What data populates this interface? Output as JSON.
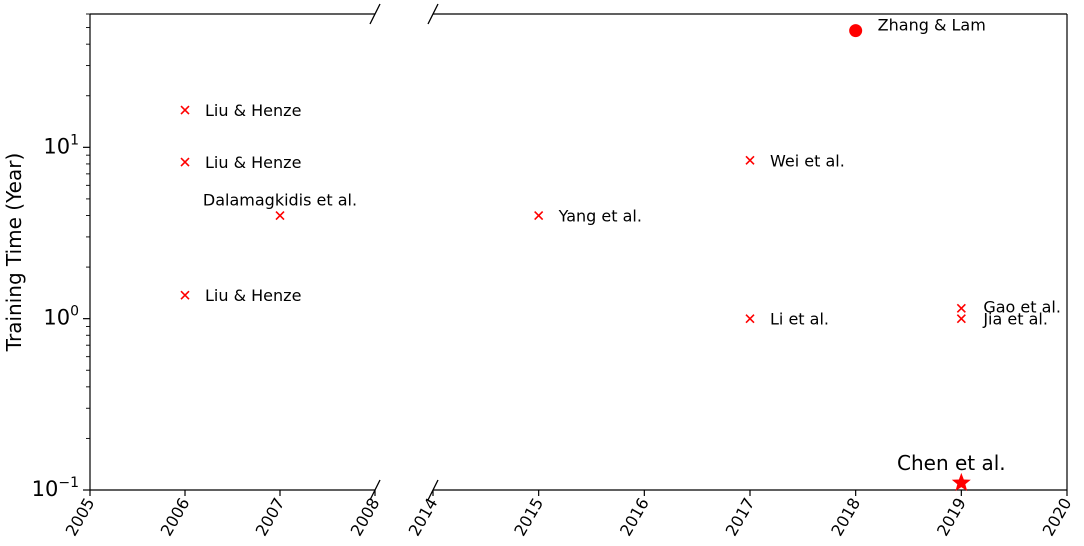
{
  "chart_data": {
    "type": "scatter",
    "title": "",
    "xlabel": "",
    "ylabel": "Training Time (Year)",
    "yscale": "log",
    "ylim": [
      0.1,
      60
    ],
    "broken_x_axis": true,
    "panels": [
      {
        "xlim": [
          2005,
          2008
        ],
        "xticks": [
          "2005",
          "2006",
          "2007",
          "2008"
        ]
      },
      {
        "xlim": [
          2014,
          2020
        ],
        "xticks": [
          "2014",
          "2015",
          "2016",
          "2017",
          "2018",
          "2019",
          "2020"
        ]
      }
    ],
    "yticks": [
      {
        "value": 0.1,
        "base": "10",
        "exp": "−1"
      },
      {
        "value": 1,
        "base": "10",
        "exp": "0"
      },
      {
        "value": 10,
        "base": "10",
        "exp": "1"
      }
    ],
    "color": "#ff0000",
    "grid": false,
    "points": [
      {
        "x": 2006,
        "y": 16.5,
        "label": "Liu & Henze",
        "marker": "x",
        "label_pos": "right"
      },
      {
        "x": 2006,
        "y": 8.2,
        "label": "Liu & Henze",
        "marker": "x",
        "label_pos": "right"
      },
      {
        "x": 2006,
        "y": 1.37,
        "label": "Liu & Henze",
        "marker": "x",
        "label_pos": "right"
      },
      {
        "x": 2007,
        "y": 4.0,
        "label": "Dalamagkidis et al.",
        "marker": "x",
        "label_pos": "above"
      },
      {
        "x": 2015,
        "y": 4.0,
        "label": "Yang et al.",
        "marker": "x",
        "label_pos": "right"
      },
      {
        "x": 2017,
        "y": 8.4,
        "label": "Wei et al.",
        "marker": "x",
        "label_pos": "right"
      },
      {
        "x": 2017,
        "y": 1.0,
        "label": "Li et al.",
        "marker": "x",
        "label_pos": "right"
      },
      {
        "x": 2018,
        "y": 48,
        "label": "Zhang & Lam",
        "marker": "circle",
        "label_pos": "right"
      },
      {
        "x": 2019,
        "y": 1.15,
        "label": "Gao et al.",
        "marker": "x",
        "label_pos": "right-up"
      },
      {
        "x": 2019,
        "y": 1.0,
        "label": "Jia et al.",
        "marker": "x",
        "label_pos": "right-down"
      },
      {
        "x": 2019,
        "y": 0.11,
        "label": "Chen et al.",
        "marker": "star",
        "label_pos": "above-big"
      }
    ]
  }
}
